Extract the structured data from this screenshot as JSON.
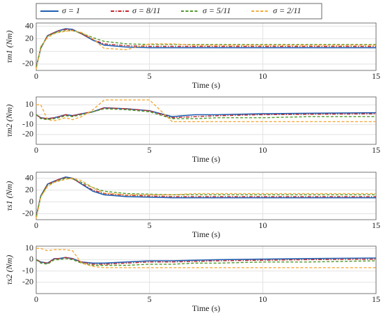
{
  "chart_data": [
    {
      "type": "line",
      "ylabel": "τm1 (Nm)",
      "xlabel": "Time (s)",
      "x": [
        0,
        0.2,
        0.5,
        0.8,
        1,
        1.3,
        1.6,
        2,
        2.5,
        3,
        4,
        5,
        6,
        7,
        8,
        10,
        12,
        15
      ],
      "xlim": [
        0,
        15
      ],
      "xticks": [
        0,
        5,
        10,
        15
      ],
      "ylim": [
        -30,
        45
      ],
      "yticks": [
        -20,
        0,
        20,
        40
      ],
      "grid": true,
      "series": [
        {
          "name": "σ = 1",
          "color": "#1f5fb0",
          "linestyle": "solid",
          "values": [
            -25,
            5,
            25,
            30,
            33,
            36,
            35,
            28,
            18,
            10,
            7,
            6,
            6,
            6,
            6,
            6,
            6,
            6
          ]
        },
        {
          "name": "σ = 8/11",
          "color": "#c0282d",
          "linestyle": "dashdot",
          "values": [
            -25,
            6,
            25,
            30,
            33,
            35,
            34,
            28,
            19,
            12,
            9,
            8,
            8,
            8,
            8,
            8,
            8,
            8
          ]
        },
        {
          "name": "σ = 5/11",
          "color": "#4e9a2a",
          "linestyle": "dashed",
          "values": [
            -25,
            6,
            24,
            29,
            31,
            33,
            33,
            29,
            22,
            16,
            12,
            11,
            11,
            11,
            11,
            11,
            11,
            11
          ]
        },
        {
          "name": "σ = 2/11",
          "color": "#f4a93a",
          "linestyle": "dashed",
          "values": [
            -28,
            8,
            22,
            28,
            30,
            32,
            33,
            30,
            20,
            5,
            3,
            12,
            12,
            10,
            10,
            10,
            10,
            10
          ]
        }
      ]
    },
    {
      "type": "line",
      "ylabel": "τm2 (Nm)",
      "xlabel": "Time (s)",
      "x": [
        0,
        0.2,
        0.5,
        0.8,
        1,
        1.3,
        1.6,
        2,
        2.5,
        3,
        4,
        5,
        6,
        7,
        8,
        10,
        12,
        15
      ],
      "xlim": [
        0,
        15
      ],
      "xticks": [
        0,
        5,
        10,
        15
      ],
      "ylim": [
        -30,
        18
      ],
      "yticks": [
        -20,
        -10,
        0,
        10
      ],
      "grid": true,
      "series": [
        {
          "color": "#1f5fb0",
          "linestyle": "solid",
          "values": [
            0,
            -3,
            -4,
            -3,
            -2,
            0,
            -1,
            1,
            3,
            7,
            6,
            4,
            -2,
            0,
            0,
            1,
            1.5,
            2
          ]
        },
        {
          "color": "#c0282d",
          "linestyle": "dashdot",
          "values": [
            0,
            -3,
            -4,
            -3,
            -2,
            0,
            -1,
            1,
            3,
            7,
            6,
            4,
            -3,
            -2,
            -1,
            0,
            0.5,
            1
          ]
        },
        {
          "color": "#4e9a2a",
          "linestyle": "dashed",
          "values": [
            0,
            -4,
            -5,
            -4,
            -3,
            -1,
            -2,
            0,
            3,
            6,
            5,
            3,
            -4,
            -4,
            -3,
            -3,
            -2,
            -2
          ]
        },
        {
          "color": "#f4a93a",
          "linestyle": "dashed",
          "values": [
            10,
            10,
            -5,
            -6,
            -5,
            -3,
            -5,
            -2,
            5,
            15,
            15,
            15,
            -7,
            -7,
            -7,
            -7,
            -7,
            -7
          ]
        }
      ]
    },
    {
      "type": "line",
      "ylabel": "τs1 (Nm)",
      "xlabel": "Time (s)",
      "x": [
        0,
        0.2,
        0.5,
        0.8,
        1,
        1.3,
        1.6,
        2,
        2.5,
        3,
        4,
        5,
        6,
        7,
        8,
        10,
        12,
        15
      ],
      "xlim": [
        0,
        15
      ],
      "xticks": [
        0,
        5,
        10,
        15
      ],
      "ylim": [
        -30,
        50
      ],
      "yticks": [
        -20,
        0,
        20,
        40
      ],
      "grid": true,
      "series": [
        {
          "color": "#1f5fb0",
          "linestyle": "solid",
          "values": [
            -25,
            10,
            30,
            35,
            38,
            42,
            40,
            30,
            18,
            12,
            9,
            8,
            7,
            7,
            7,
            7,
            7,
            7
          ]
        },
        {
          "color": "#c0282d",
          "linestyle": "dashdot",
          "values": [
            -25,
            10,
            30,
            35,
            38,
            41,
            39,
            31,
            20,
            14,
            11,
            10,
            9,
            9,
            9,
            9,
            9,
            9
          ]
        },
        {
          "color": "#4e9a2a",
          "linestyle": "dashed",
          "values": [
            -25,
            9,
            28,
            33,
            36,
            40,
            39,
            33,
            24,
            18,
            14,
            13,
            12,
            12,
            12,
            12,
            12,
            12
          ]
        },
        {
          "color": "#f4a93a",
          "linestyle": "dashed",
          "values": [
            -28,
            8,
            26,
            33,
            35,
            38,
            40,
            36,
            24,
            15,
            12,
            12,
            12,
            14,
            14,
            14,
            14,
            14
          ]
        }
      ]
    },
    {
      "type": "line",
      "ylabel": "τs2 (Nm)",
      "xlabel": "Time (s)",
      "x": [
        0,
        0.2,
        0.5,
        0.8,
        1,
        1.3,
        1.6,
        2,
        2.5,
        3,
        4,
        5,
        6,
        7,
        8,
        10,
        12,
        15
      ],
      "xlim": [
        0,
        15
      ],
      "xticks": [
        0,
        5,
        10,
        15
      ],
      "ylim": [
        -30,
        12
      ],
      "yticks": [
        -20,
        -10,
        0,
        10
      ],
      "grid": true,
      "series": [
        {
          "color": "#1f5fb0",
          "linestyle": "solid",
          "values": [
            0,
            -2,
            -3,
            1,
            1,
            2,
            1,
            -2,
            -3,
            -3,
            -2,
            -1,
            -1,
            -0.5,
            0,
            0.5,
            1,
            1.5
          ]
        },
        {
          "color": "#c0282d",
          "linestyle": "dashdot",
          "values": [
            0,
            -2,
            -3,
            1,
            1,
            2,
            1,
            -2,
            -4,
            -4,
            -3,
            -2,
            -2,
            -1.5,
            -1,
            -0.5,
            0,
            0.5
          ]
        },
        {
          "color": "#4e9a2a",
          "linestyle": "dashed",
          "values": [
            0,
            -3,
            -4,
            0,
            0,
            1,
            0,
            -3,
            -5,
            -5,
            -5,
            -4,
            -4,
            -3,
            -3,
            -2,
            -2,
            -1
          ]
        },
        {
          "color": "#f4a93a",
          "linestyle": "dashed",
          "values": [
            10,
            10,
            8,
            9,
            9,
            9,
            8,
            -3,
            -6,
            -7,
            -7,
            -7,
            -7,
            -7,
            -7,
            -7,
            -7,
            -7
          ]
        }
      ]
    }
  ]
}
